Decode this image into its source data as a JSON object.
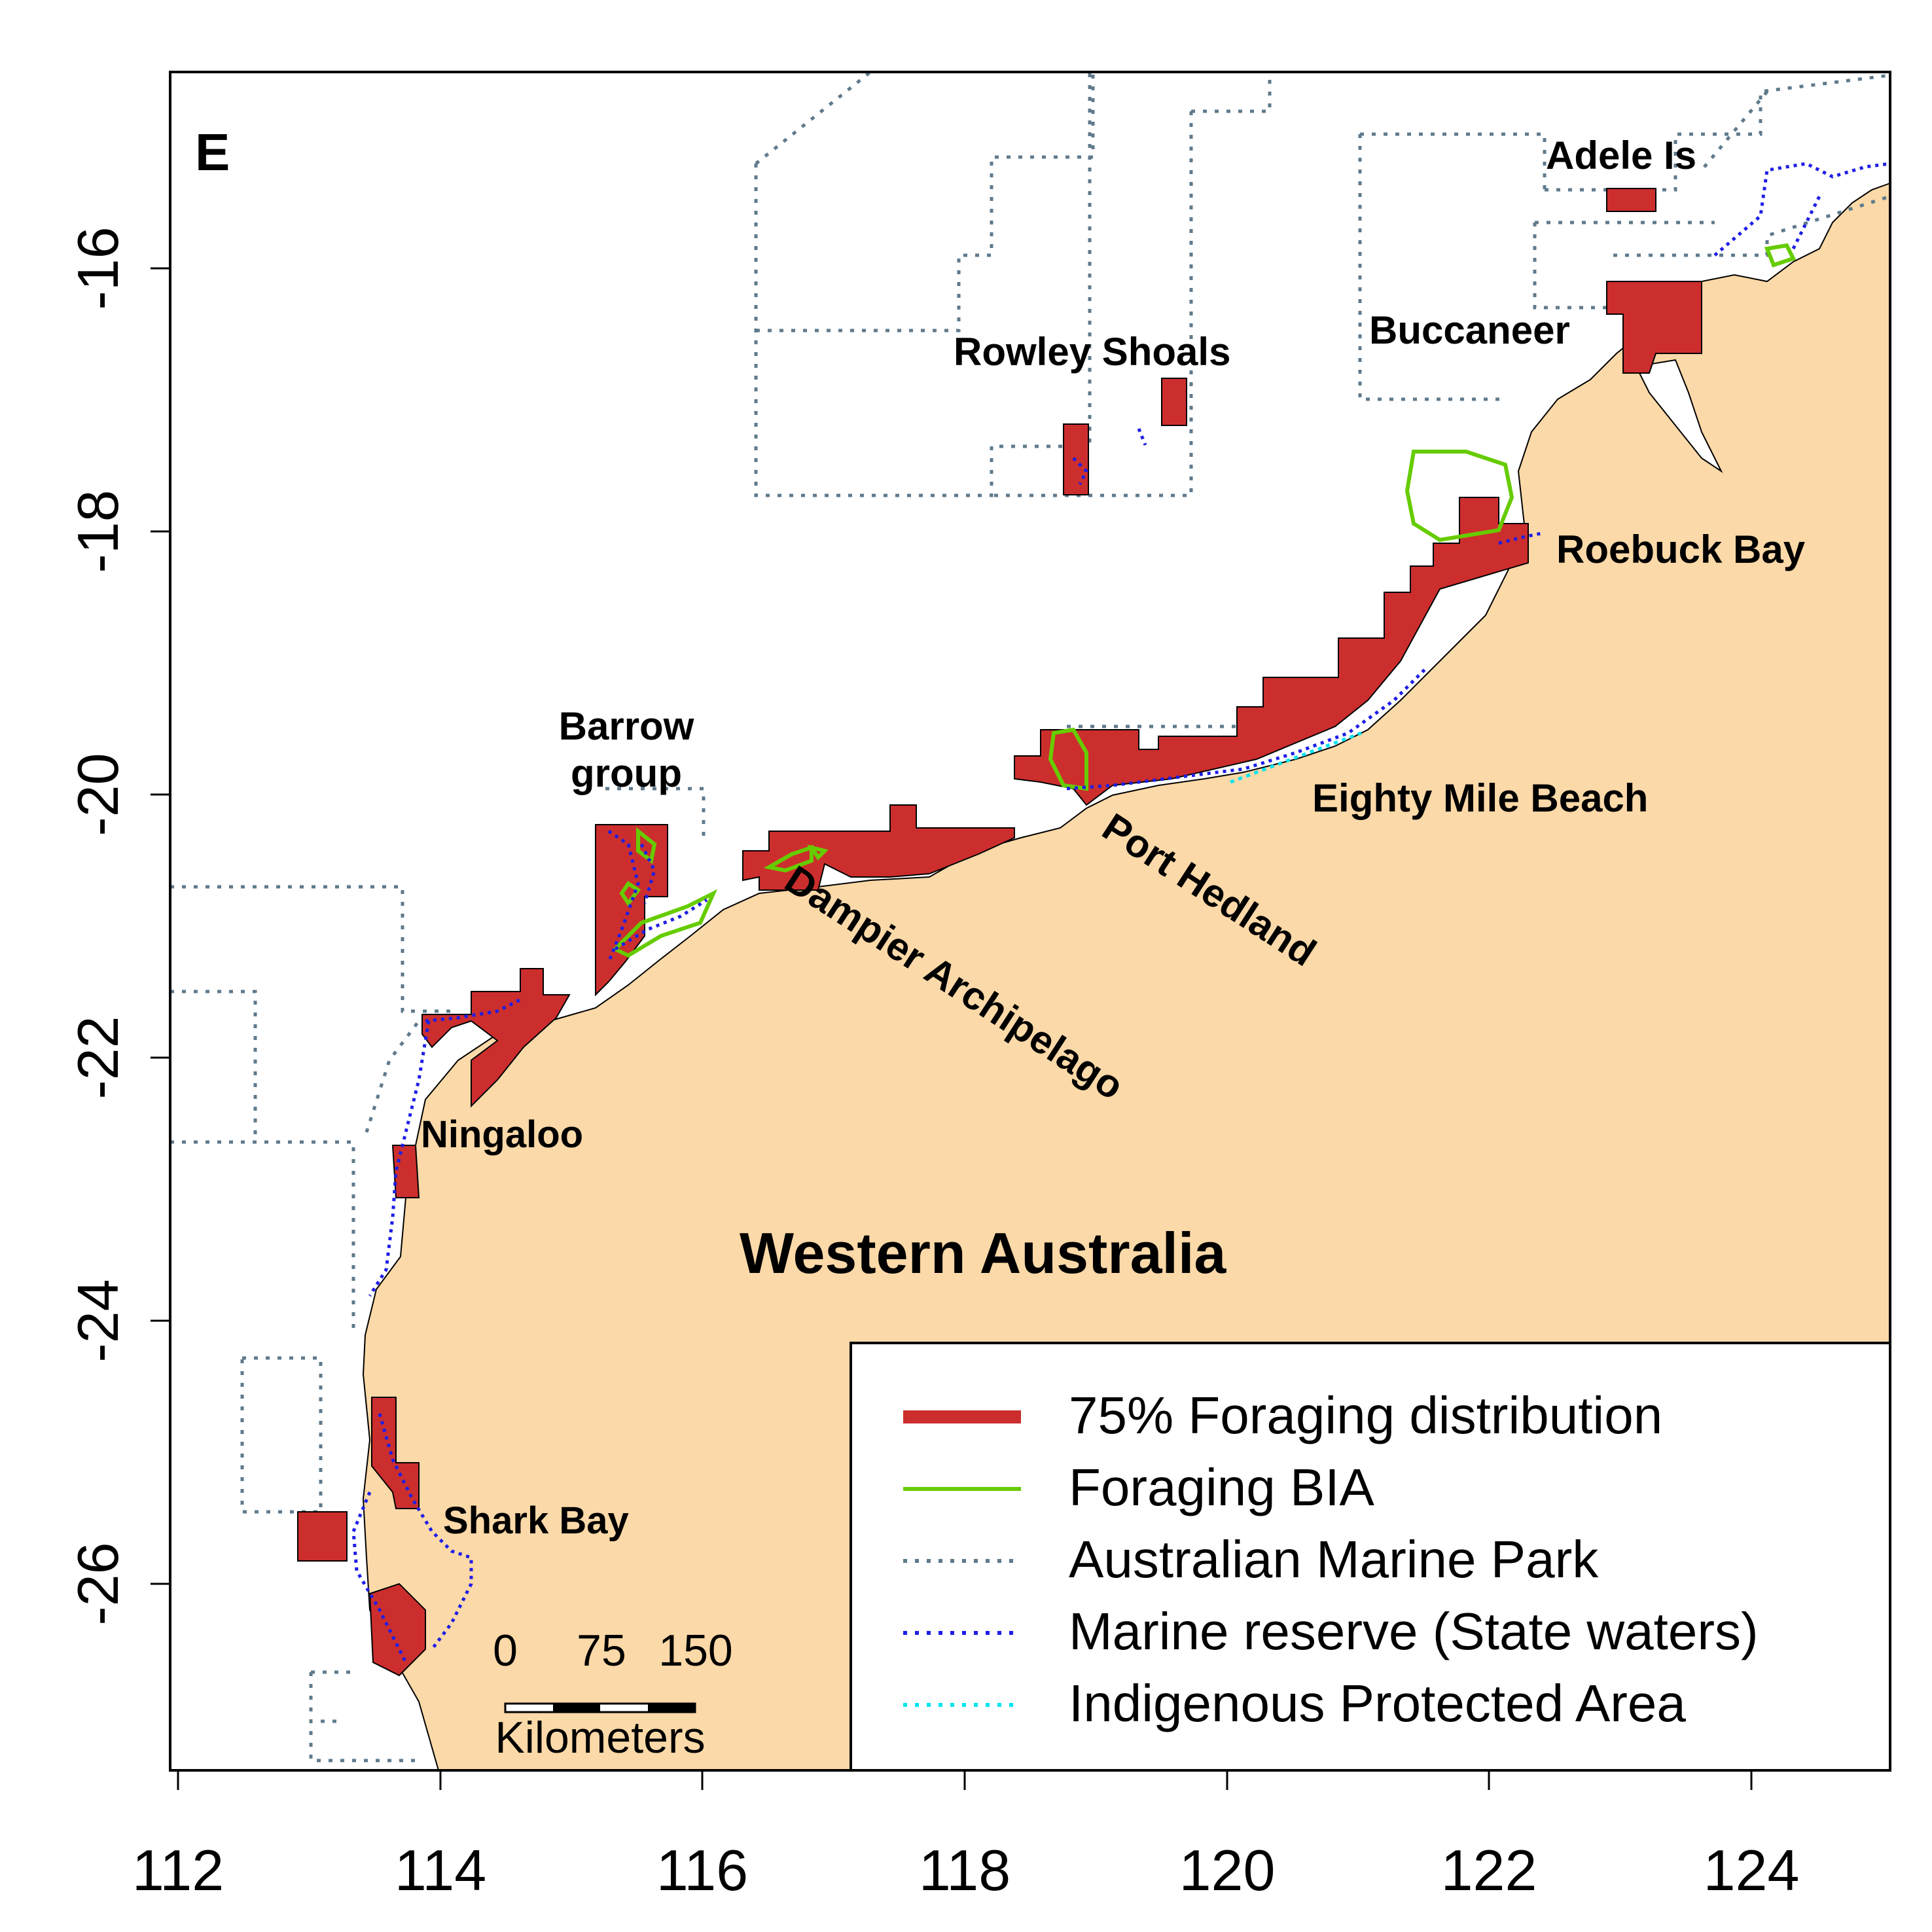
{
  "panel_label": "E",
  "x_ticks": [
    "112",
    "114",
    "116",
    "118",
    "120",
    "122",
    "124"
  ],
  "y_ticks": [
    "-16",
    "-18",
    "-20",
    "-22",
    "-24",
    "-26"
  ],
  "places": {
    "adele": "Adele Is",
    "buccaneer": "Buccaneer",
    "rowley": "Rowley Shoals",
    "roebuck": "Roebuck Bay",
    "barrow1": "Barrow",
    "barrow2": "group",
    "eighty": "Eighty Mile Beach",
    "hedland": "Port Hedland",
    "dampier": "Dampier Archipelago",
    "ningaloo": "Ningaloo",
    "state": "Western Australia",
    "shark": "Shark Bay"
  },
  "scale_bar": {
    "t0": "0",
    "t1": "75",
    "t2": "150",
    "unit": "Kilometers"
  },
  "legend": [
    {
      "label": "75% Foraging distribution",
      "color": "#cc2e2e",
      "style": "thick-solid"
    },
    {
      "label": "Foraging BIA",
      "color": "#66cc00",
      "style": "solid"
    },
    {
      "label": "Australian Marine Park",
      "color": "#5f7a8c",
      "style": "dotted"
    },
    {
      "label": "Marine reserve (State waters)",
      "color": "#1e1ee6",
      "style": "dotted"
    },
    {
      "label": "Indigenous Protected Area",
      "color": "#00e5ee",
      "style": "dotted"
    }
  ],
  "colors": {
    "land": "#fcd9a8",
    "forage": "#cc2e2e",
    "bia": "#66cc00",
    "park": "#5f7a8c",
    "reserve": "#1e1ee6",
    "ipa": "#00e5ee"
  }
}
